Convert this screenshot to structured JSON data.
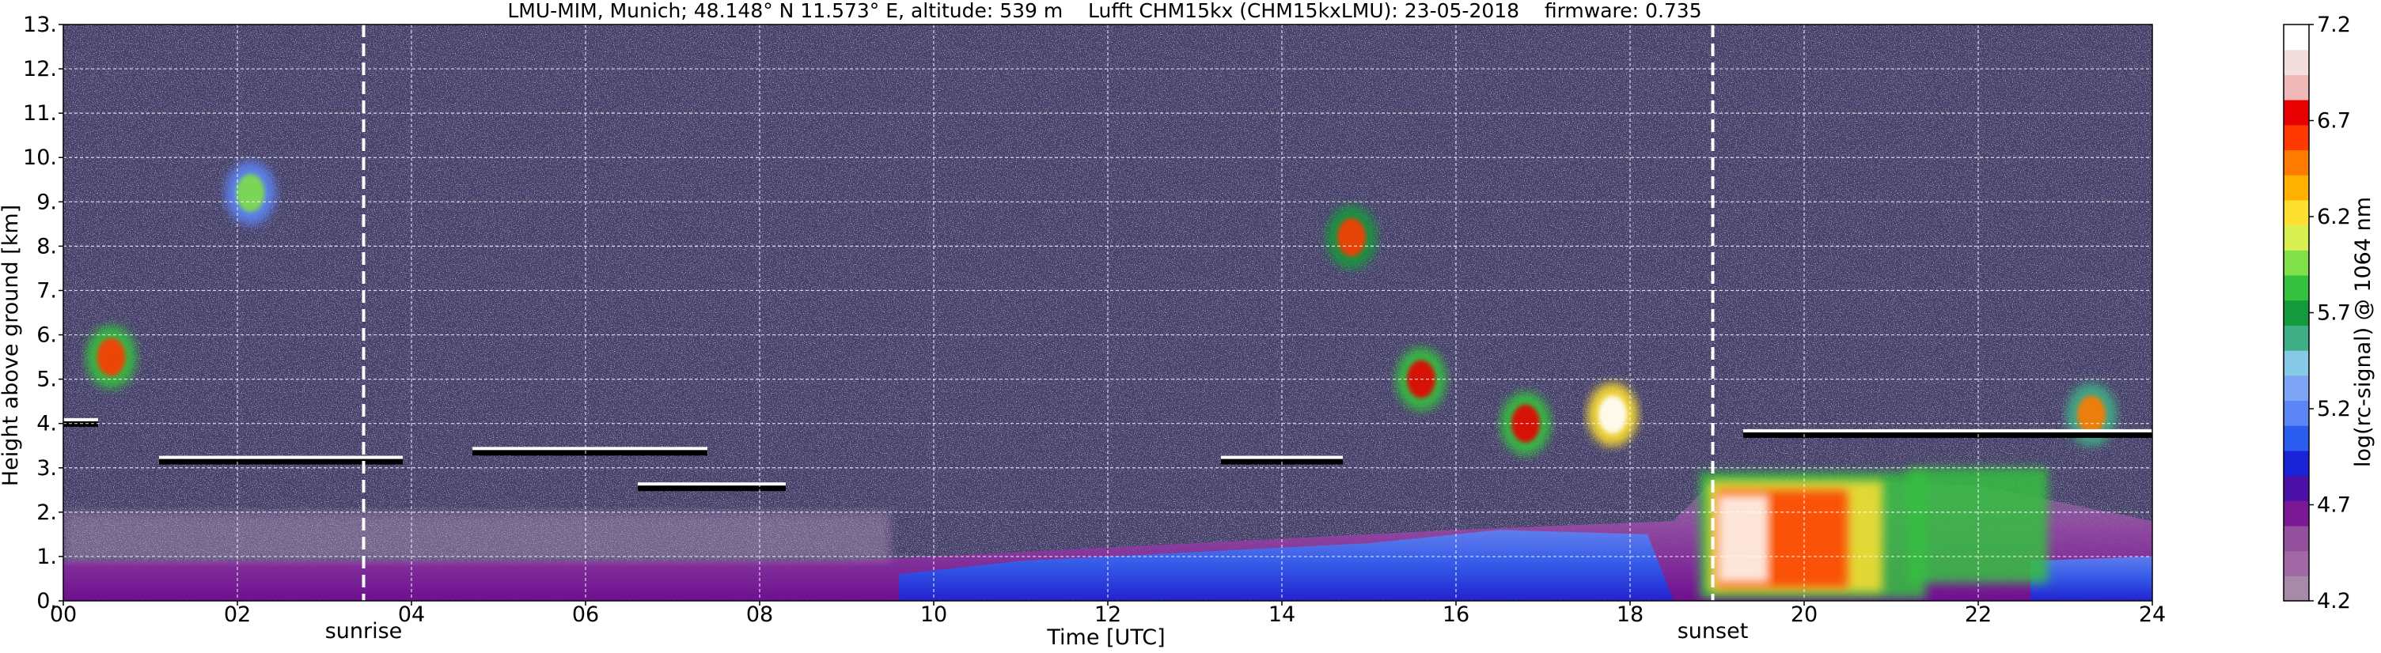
{
  "chart_data": {
    "type": "heatmap",
    "title": "LMU-MIM, Munich; 48.148° N 11.573° E, altitude: 539 m    Lufft CHM15kx (CHM15kxLMU): 23-05-2018    firmware: 0.735",
    "xlabel": "Time [UTC]",
    "ylabel": "Height above ground [km]",
    "xlim": [
      0,
      24
    ],
    "ylim": [
      0,
      13
    ],
    "x_ticks": [
      "00",
      "02",
      "04",
      "06",
      "08",
      "10",
      "12",
      "14",
      "16",
      "18",
      "20",
      "22",
      "24"
    ],
    "y_ticks": [
      "0.",
      "1.",
      "2.",
      "3.",
      "4.",
      "5.",
      "6.",
      "7.",
      "8.",
      "9.",
      "10.",
      "11.",
      "12.",
      "13."
    ],
    "grid": true,
    "colorbar": {
      "label": "log(rc-signal) @ 1064 nm",
      "range": [
        4.2,
        7.2
      ],
      "ticks": [
        "4.2",
        "4.7",
        "5.2",
        "5.7",
        "6.2",
        "6.7",
        "7.2"
      ],
      "colors": [
        "#a68aa7",
        "#a068a4",
        "#92509d",
        "#7a1896",
        "#4b10a8",
        "#1a24d6",
        "#2b5ef0",
        "#5b84f5",
        "#7ea4f6",
        "#86cae8",
        "#3fae86",
        "#14993c",
        "#35c040",
        "#7fe04a",
        "#d8f050",
        "#ffe030",
        "#ffb000",
        "#ff7a00",
        "#ff3a00",
        "#e80000",
        "#f0b8b8",
        "#f3dede",
        "#ffffff"
      ]
    },
    "annotations": [
      {
        "text": "sunrise",
        "x": 3.45
      },
      {
        "text": "sunset",
        "x": 18.95
      }
    ],
    "features": {
      "cloud_layers": [
        {
          "t_start": 0.0,
          "t_end": 0.4,
          "height_km": 4.05
        },
        {
          "t_start": 1.1,
          "t_end": 3.9,
          "height_km": 3.2
        },
        {
          "t_start": 4.7,
          "t_end": 7.4,
          "height_km": 3.4
        },
        {
          "t_start": 6.6,
          "t_end": 8.3,
          "height_km": 2.6
        },
        {
          "t_start": 13.3,
          "t_end": 14.7,
          "height_km": 3.2
        },
        {
          "t_start": 19.3,
          "t_end": 24.0,
          "height_km": 3.8
        }
      ],
      "cirrus_patches": [
        {
          "t": 0.55,
          "height_km": 5.5,
          "peak": 6.7
        },
        {
          "t": 2.15,
          "height_km": 9.2,
          "peak": 6.0
        },
        {
          "t": 14.8,
          "height_km": 8.2,
          "peak": 6.6
        },
        {
          "t": 15.6,
          "height_km": 5.0,
          "peak": 6.8
        },
        {
          "t": 16.8,
          "height_km": 4.0,
          "peak": 6.8
        },
        {
          "t": 17.8,
          "height_km": 4.2,
          "peak": 7.2
        },
        {
          "t": 23.3,
          "height_km": 4.2,
          "peak": 6.5
        }
      ],
      "boundary_layer_top_km": [
        {
          "t": 0,
          "h": 0.9
        },
        {
          "t": 4,
          "h": 0.9
        },
        {
          "t": 9,
          "h": 0.9
        },
        {
          "t": 10,
          "h": 1.0
        },
        {
          "t": 13,
          "h": 1.3
        },
        {
          "t": 16,
          "h": 1.6
        },
        {
          "t": 18.5,
          "h": 1.8
        },
        {
          "t": 19,
          "h": 2.8
        },
        {
          "t": 22,
          "h": 2.6
        },
        {
          "t": 24,
          "h": 1.8
        }
      ]
    }
  }
}
